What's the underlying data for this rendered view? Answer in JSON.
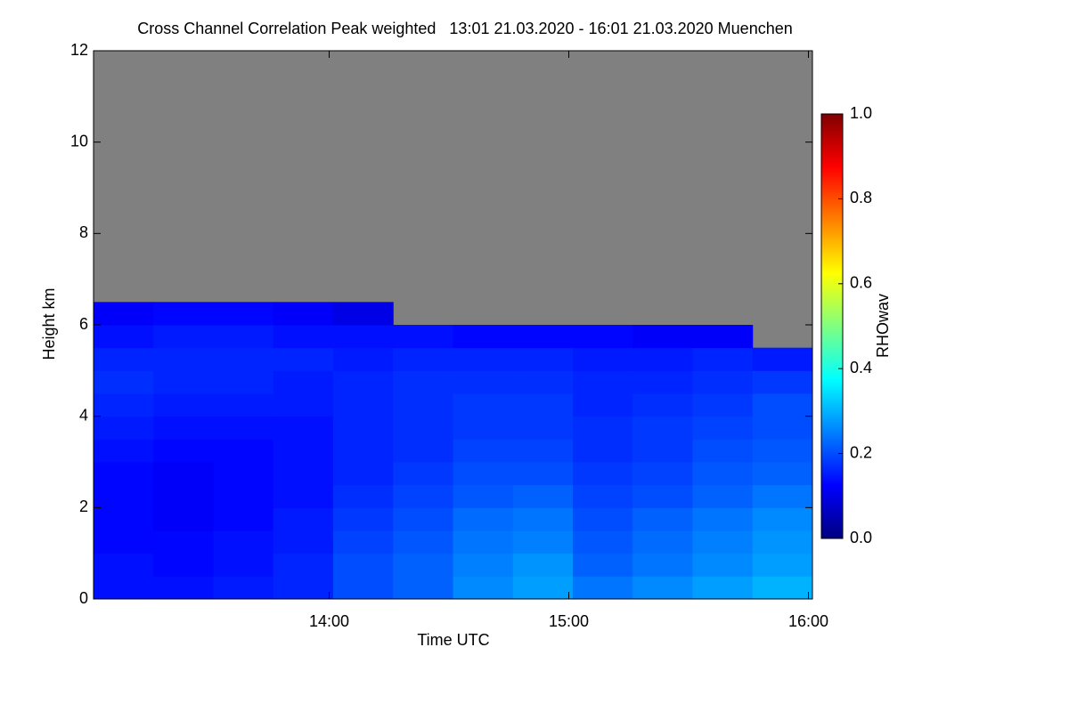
{
  "chart_data": {
    "type": "heatmap",
    "title": "Cross Channel Correlation Peak weighted   13:01 21.03.2020 - 16:01 21.03.2020 Muenchen",
    "xlabel": "Time UTC",
    "ylabel": "Height km",
    "colorbar_label": "RHOwav",
    "xlim": [
      13.0167,
      16.0167
    ],
    "xticks": [
      {
        "value": 14,
        "label": "14:00"
      },
      {
        "value": 15,
        "label": "15:00"
      },
      {
        "value": 16,
        "label": "16:00"
      }
    ],
    "ylim": [
      0,
      12
    ],
    "yticks": [
      0,
      2,
      4,
      6,
      8,
      10,
      12
    ],
    "zlim": [
      0,
      1
    ],
    "zticks": [
      {
        "value": 0,
        "label": "0.0"
      },
      0.2,
      0.4,
      0.6,
      0.8,
      {
        "value": 1,
        "label": "1.0"
      }
    ],
    "colormap": "jet",
    "missing_color": "#808080",
    "xbins": [
      13.0167,
      13.2667,
      13.5167,
      13.7667,
      14.0167,
      14.2667,
      14.5167,
      14.7667,
      15.0167,
      15.2667,
      15.5167,
      15.7667,
      16.0167
    ],
    "ybins": [
      0,
      0.5,
      1,
      1.5,
      2,
      2.5,
      3,
      3.5,
      4,
      4.5,
      5,
      5.5,
      6,
      6.5
    ],
    "z": [
      [
        0.14,
        0.14,
        0.15,
        0.16,
        0.2,
        0.22,
        0.26,
        0.28,
        0.24,
        0.26,
        0.28,
        0.3
      ],
      [
        0.14,
        0.13,
        0.14,
        0.16,
        0.2,
        0.22,
        0.25,
        0.27,
        0.22,
        0.24,
        0.26,
        0.28
      ],
      [
        0.13,
        0.13,
        0.14,
        0.15,
        0.19,
        0.21,
        0.24,
        0.25,
        0.21,
        0.23,
        0.25,
        0.27
      ],
      [
        0.13,
        0.12,
        0.13,
        0.15,
        0.18,
        0.2,
        0.23,
        0.24,
        0.2,
        0.22,
        0.24,
        0.26
      ],
      [
        0.13,
        0.12,
        0.13,
        0.14,
        0.17,
        0.19,
        0.21,
        0.22,
        0.19,
        0.2,
        0.22,
        0.24
      ],
      [
        0.13,
        0.12,
        0.13,
        0.14,
        0.16,
        0.18,
        0.2,
        0.2,
        0.18,
        0.19,
        0.21,
        0.22
      ],
      [
        0.14,
        0.13,
        0.13,
        0.14,
        0.16,
        0.17,
        0.19,
        0.19,
        0.17,
        0.18,
        0.2,
        0.21
      ],
      [
        0.15,
        0.14,
        0.14,
        0.14,
        0.16,
        0.17,
        0.18,
        0.18,
        0.17,
        0.18,
        0.19,
        0.2
      ],
      [
        0.16,
        0.15,
        0.15,
        0.15,
        0.16,
        0.17,
        0.18,
        0.18,
        0.16,
        0.17,
        0.18,
        0.2
      ],
      [
        0.17,
        0.16,
        0.16,
        0.15,
        0.16,
        0.17,
        0.17,
        0.17,
        0.16,
        0.16,
        0.17,
        0.18
      ],
      [
        0.16,
        0.16,
        0.16,
        0.16,
        0.15,
        0.16,
        0.16,
        0.16,
        0.15,
        0.15,
        0.16,
        0.15
      ],
      [
        0.14,
        0.15,
        0.15,
        0.14,
        0.14,
        0.14,
        0.13,
        0.13,
        0.13,
        0.12,
        0.12,
        null
      ],
      [
        0.12,
        0.13,
        0.13,
        0.12,
        0.1,
        null,
        null,
        null,
        null,
        null,
        null,
        null
      ]
    ]
  }
}
